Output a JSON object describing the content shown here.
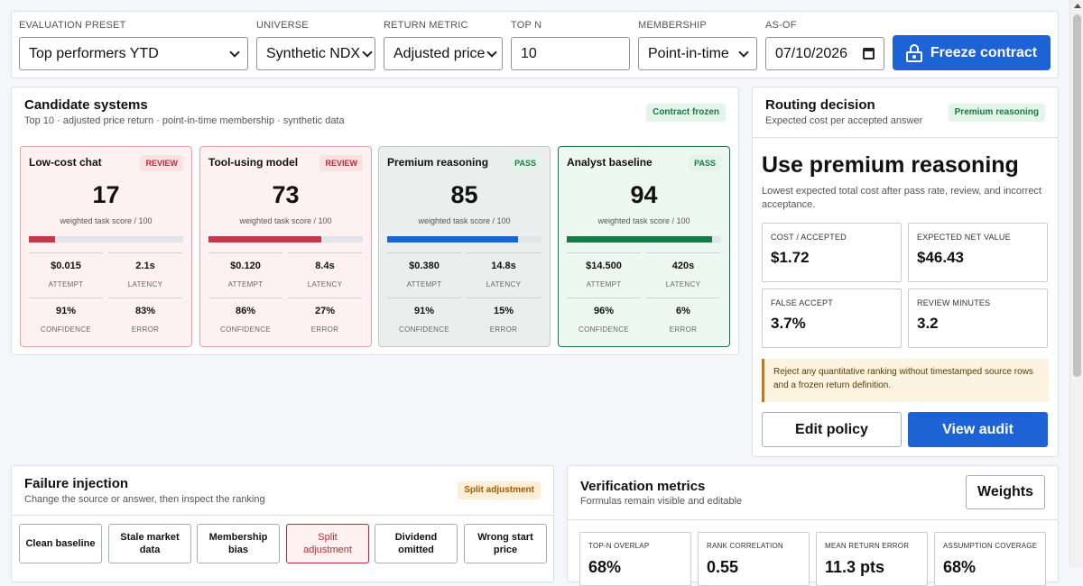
{
  "toolbar": {
    "preset": {
      "label": "EVALUATION PRESET",
      "value": "Top performers YTD"
    },
    "universe": {
      "label": "UNIVERSE",
      "value": "Synthetic NDX"
    },
    "return_metric": {
      "label": "RETURN METRIC",
      "value": "Adjusted price"
    },
    "top_n": {
      "label": "TOP N",
      "value": "10"
    },
    "membership": {
      "label": "MEMBERSHIP",
      "value": "Point-in-time"
    },
    "as_of": {
      "label": "AS-OF",
      "value": "07/10/2026"
    },
    "freeze_label": "Freeze contract"
  },
  "candidates": {
    "title": "Candidate systems",
    "subtitle": "Top 10 · adjusted price return · point-in-time membership · synthetic data",
    "badge": "Contract frozen",
    "score_label": "weighted task score / 100",
    "labels": {
      "attempt": "ATTEMPT",
      "latency": "LATENCY",
      "confidence": "CONFIDENCE",
      "error": "ERROR"
    },
    "systems": [
      {
        "name": "Low-cost chat",
        "status": "REVIEW",
        "score": "17",
        "score_pct": 17,
        "attempt": "$0.015",
        "latency": "2.1s",
        "confidence": "91%",
        "error": "83%",
        "bar_color": "#c2394a"
      },
      {
        "name": "Tool-using model",
        "status": "REVIEW",
        "score": "73",
        "score_pct": 73,
        "attempt": "$0.120",
        "latency": "8.4s",
        "confidence": "86%",
        "error": "27%",
        "bar_color": "#c2394a"
      },
      {
        "name": "Premium reasoning",
        "status": "PASS",
        "score": "85",
        "score_pct": 85,
        "attempt": "$0.380",
        "latency": "14.8s",
        "confidence": "91%",
        "error": "15%",
        "bar_color": "#1d63d6"
      },
      {
        "name": "Analyst baseline",
        "status": "PASS",
        "score": "94",
        "score_pct": 94,
        "attempt": "$14.500",
        "latency": "420s",
        "confidence": "96%",
        "error": "6%",
        "bar_color": "#1b7a43"
      }
    ]
  },
  "routing": {
    "title": "Routing decision",
    "subtitle": "Expected cost per accepted answer",
    "badge": "Premium reasoning",
    "recommendation": "Use premium reasoning",
    "description": "Lowest expected total cost after pass rate, review, and incorrect acceptance.",
    "metrics": [
      {
        "label": "COST / ACCEPTED",
        "value": "$1.72"
      },
      {
        "label": "EXPECTED NET VALUE",
        "value": "$46.43"
      },
      {
        "label": "FALSE ACCEPT",
        "value": "3.7%"
      },
      {
        "label": "REVIEW MINUTES",
        "value": "3.2"
      }
    ],
    "notice": "Reject any quantitative ranking without timestamped source rows and a frozen return definition.",
    "edit_label": "Edit policy",
    "audit_label": "View audit"
  },
  "failure": {
    "title": "Failure injection",
    "subtitle": "Change the source or answer, then inspect the ranking",
    "badge": "Split adjustment",
    "options": [
      "Clean baseline",
      "Stale market data",
      "Membership bias",
      "Split adjustment",
      "Dividend omitted",
      "Wrong start price"
    ]
  },
  "verification": {
    "title": "Verification metrics",
    "subtitle": "Formulas remain visible and editable",
    "weights_label": "Weights",
    "metrics": [
      {
        "label": "TOP-N OVERLAP",
        "value": "68%"
      },
      {
        "label": "RANK CORRELATION",
        "value": "0.55"
      },
      {
        "label": "MEAN RETURN ERROR",
        "value": "11.3 pts"
      },
      {
        "label": "ASSUMPTION COVERAGE",
        "value": "68%"
      }
    ]
  }
}
